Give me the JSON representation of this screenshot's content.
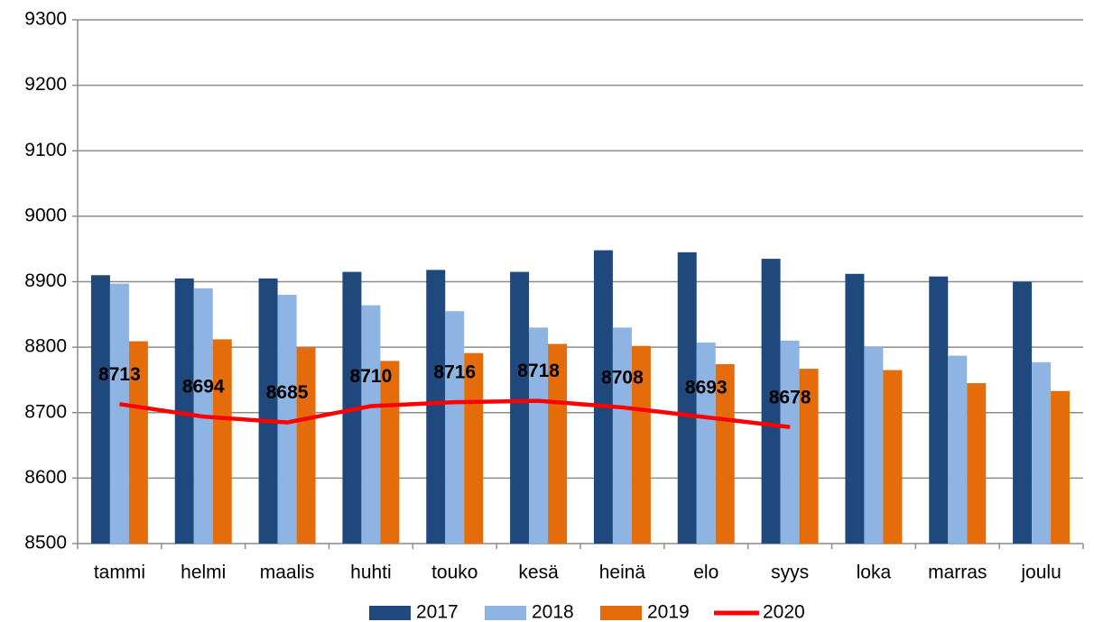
{
  "chart_data": {
    "type": "bar-line",
    "categories": [
      "tammi",
      "helmi",
      "maalis",
      "huhti",
      "touko",
      "kesä",
      "heinä",
      "elo",
      "syys",
      "loka",
      "marras",
      "joulu"
    ],
    "series": [
      {
        "name": "2017",
        "type": "bar",
        "color": "#1f497d",
        "values": [
          8910,
          8905,
          8905,
          8915,
          8918,
          8915,
          8948,
          8945,
          8935,
          8912,
          8908,
          8900
        ]
      },
      {
        "name": "2018",
        "type": "bar",
        "color": "#8db4e2",
        "values": [
          8897,
          8890,
          8880,
          8864,
          8855,
          8830,
          8830,
          8807,
          8810,
          8800,
          8787,
          8777
        ]
      },
      {
        "name": "2019",
        "type": "bar",
        "color": "#e46c0a",
        "values": [
          8809,
          8812,
          8800,
          8779,
          8791,
          8805,
          8802,
          8774,
          8767,
          8765,
          8745,
          8733
        ]
      },
      {
        "name": "2020",
        "type": "line",
        "color": "#ff0000",
        "values": [
          8713,
          8694,
          8685,
          8710,
          8716,
          8718,
          8708,
          8693,
          8678,
          null,
          null,
          null
        ],
        "data_labels": true
      }
    ],
    "ylim": [
      8500,
      9300
    ],
    "yticks": [
      8500,
      8600,
      8700,
      8800,
      8900,
      9000,
      9100,
      9200,
      9300
    ],
    "grid": true,
    "legend": "bottom"
  }
}
